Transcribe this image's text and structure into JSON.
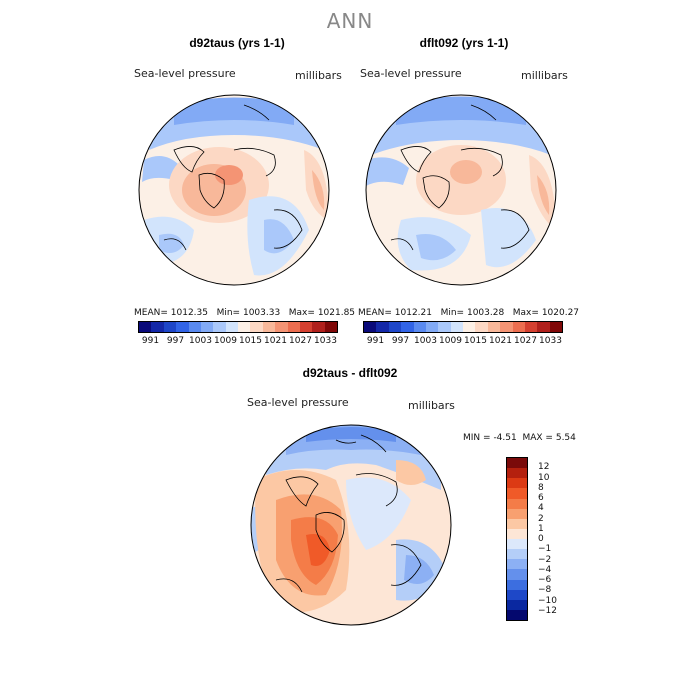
{
  "title": "ANN",
  "panels": [
    {
      "title": "d92taus (yrs 1-1)",
      "variable": "Sea-level pressure",
      "units": "millibars",
      "stats": {
        "mean_label": "MEAN=",
        "mean": "1012.35",
        "min_label": "Min=",
        "min": "1003.33",
        "max_label": "Max=",
        "max": "1021.85"
      },
      "colorbar": {
        "colors": [
          "#0a0a7a",
          "#1428a8",
          "#1e46c8",
          "#3264e6",
          "#5a8af0",
          "#82aaf5",
          "#aac8fa",
          "#d2e4fc",
          "#fcf0e6",
          "#fcd8c4",
          "#f8b89a",
          "#f49474",
          "#ec6e50",
          "#d44030",
          "#b0201c",
          "#800808"
        ],
        "tick_labels": [
          "991",
          "997",
          "1003",
          "1009",
          "1015",
          "1021",
          "1027",
          "1033"
        ]
      }
    },
    {
      "title": "dflt092 (yrs 1-1)",
      "variable": "Sea-level pressure",
      "units": "millibars",
      "stats": {
        "mean_label": "MEAN=",
        "mean": "1012.21",
        "min_label": "Min=",
        "min": "1003.28",
        "max_label": "Max=",
        "max": "1020.27"
      },
      "colorbar": {
        "colors": [
          "#0a0a7a",
          "#1428a8",
          "#1e46c8",
          "#3264e6",
          "#5a8af0",
          "#82aaf5",
          "#aac8fa",
          "#d2e4fc",
          "#fcf0e6",
          "#fcd8c4",
          "#f8b89a",
          "#f49474",
          "#ec6e50",
          "#d44030",
          "#b0201c",
          "#800808"
        ],
        "tick_labels": [
          "991",
          "997",
          "1003",
          "1009",
          "1015",
          "1021",
          "1027",
          "1033"
        ]
      }
    }
  ],
  "difference": {
    "title": "d92taus - dflt092",
    "variable": "Sea-level pressure",
    "units": "millibars",
    "stats": {
      "min_label": "MIN =",
      "min": "-4.51",
      "max_label": "MAX =",
      "max": "5.54"
    },
    "colorbar": {
      "colors_top_to_bottom": [
        "#7a0a0a",
        "#b4200e",
        "#dc3a14",
        "#f05a28",
        "#f47c48",
        "#f8a070",
        "#fcc8a4",
        "#fde6d6",
        "#dce8fb",
        "#b4cef8",
        "#8cb0f4",
        "#6490ec",
        "#3c6ee0",
        "#1e48c8",
        "#0a28a0",
        "#04086e"
      ],
      "tick_labels": [
        "12",
        "10",
        "8",
        "6",
        "4",
        "2",
        "1",
        "0",
        "−1",
        "−2",
        "−4",
        "−6",
        "−8",
        "−10",
        "−12"
      ]
    }
  }
}
